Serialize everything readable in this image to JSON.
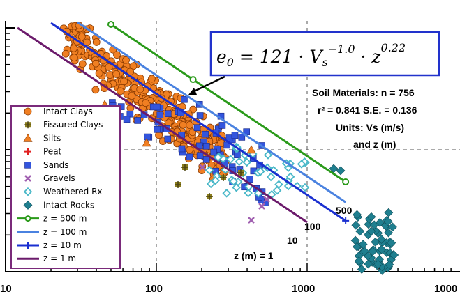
{
  "chart_data": {
    "type": "scatter",
    "x_scale": "log",
    "y_scale": "log",
    "xlim": [
      10,
      10000
    ],
    "x_ticks": [
      "10",
      "100",
      "1000",
      "1000"
    ],
    "grid": "dashed at major decades",
    "equation": {
      "e0": "e",
      "e0_sub": "0",
      "eq": " = 121 · V",
      "vs_sub": "s",
      "vs_exp": "−1.0",
      "dot": " · z",
      "z_exp": "0.22"
    },
    "annotations": [
      "Soil Materials: n = 756",
      "r² = 0.841  S.E. = 0.136",
      "Units:  Vs (m/s)",
      "and z (m)"
    ],
    "line_labels": [
      {
        "text": "500",
        "color": "#000000"
      },
      {
        "text": "100",
        "color": "#000000"
      },
      {
        "text": "10",
        "color": "#000000"
      },
      {
        "text": "z (m) = 1",
        "color": "#000000"
      }
    ],
    "legend": [
      {
        "label": "Intact Clays",
        "marker": "circle",
        "color": "#f07f22"
      },
      {
        "label": "Fissured Clays",
        "marker": "plus-square",
        "color": "#8a7d1e"
      },
      {
        "label": "Silts",
        "marker": "triangle",
        "color": "#f07f22"
      },
      {
        "label": "Peat",
        "marker": "plus",
        "color": "#e02020"
      },
      {
        "label": "Sands",
        "marker": "square",
        "color": "#3355dd"
      },
      {
        "label": "Gravels",
        "marker": "x",
        "color": "#a05fb0"
      },
      {
        "label": "Weathered Rx",
        "marker": "diamond-open",
        "color": "#4ab8c8"
      },
      {
        "label": "Intact Rocks",
        "marker": "diamond",
        "color": "#1f7f8f"
      },
      {
        "label": "z = 500 m",
        "marker": "line-circle",
        "color": "#2a9a1a"
      },
      {
        "label": "z = 100 m",
        "marker": "line",
        "color": "#4a82e0"
      },
      {
        "label": "z = 10 m",
        "marker": "line-plus",
        "color": "#1a2fd0"
      },
      {
        "label": "z = 1 m",
        "marker": "line",
        "color": "#6b1a6b"
      }
    ],
    "series": [
      {
        "name": "z = 500 m",
        "x": [
          50,
          1800
        ],
        "color": "#2a9a1a"
      },
      {
        "name": "z = 100 m",
        "x": [
          30,
          1800
        ],
        "color": "#4a82e0"
      },
      {
        "name": "z = 10 m",
        "x": [
          20,
          1800
        ],
        "color": "#1a2fd0"
      },
      {
        "name": "z = 1 m",
        "x": [
          12,
          1000
        ],
        "color": "#6b1a6b"
      }
    ],
    "point_groups": [
      {
        "name": "Intact Clays",
        "x_range": [
          30,
          400
        ],
        "count": 320,
        "color": "#f07f22"
      },
      {
        "name": "Sands",
        "x_range": [
          60,
          600
        ],
        "count": 110,
        "color": "#3355dd"
      },
      {
        "name": "Weathered Rx",
        "x_range": [
          250,
          1000
        ],
        "count": 45,
        "color": "#4ab8c8"
      },
      {
        "name": "Intact Rocks",
        "x_range": [
          1700,
          3500
        ],
        "count": 60,
        "color": "#1f7f8f"
      }
    ]
  }
}
